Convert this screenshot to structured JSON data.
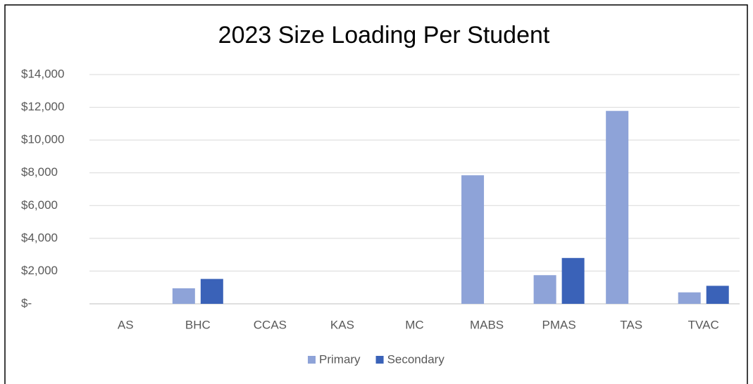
{
  "chart_data": {
    "type": "bar",
    "title": "2023 Size Loading Per Student",
    "categories": [
      "AS",
      "BHC",
      "CCAS",
      "KAS",
      "MC",
      "MABS",
      "PMAS",
      "TAS",
      "TVAC"
    ],
    "series": [
      {
        "name": "Primary",
        "color": "#8ea3d8",
        "values": [
          0,
          950,
          0,
          0,
          0,
          7850,
          1750,
          11780,
          700
        ]
      },
      {
        "name": "Secondary",
        "color": "#3a62b8",
        "values": [
          0,
          1520,
          0,
          0,
          0,
          0,
          2800,
          0,
          1100
        ]
      }
    ],
    "ylim": [
      0,
      14000
    ],
    "yticks": [
      {
        "value": 0,
        "label": "$-"
      },
      {
        "value": 2000,
        "label": "$2,000"
      },
      {
        "value": 4000,
        "label": "$4,000"
      },
      {
        "value": 6000,
        "label": "$6,000"
      },
      {
        "value": 8000,
        "label": "$8,000"
      },
      {
        "value": 10000,
        "label": "$10,000"
      },
      {
        "value": 12000,
        "label": "$12,000"
      },
      {
        "value": 14000,
        "label": "$14,000"
      }
    ],
    "grid": true,
    "legend": "bottom"
  }
}
